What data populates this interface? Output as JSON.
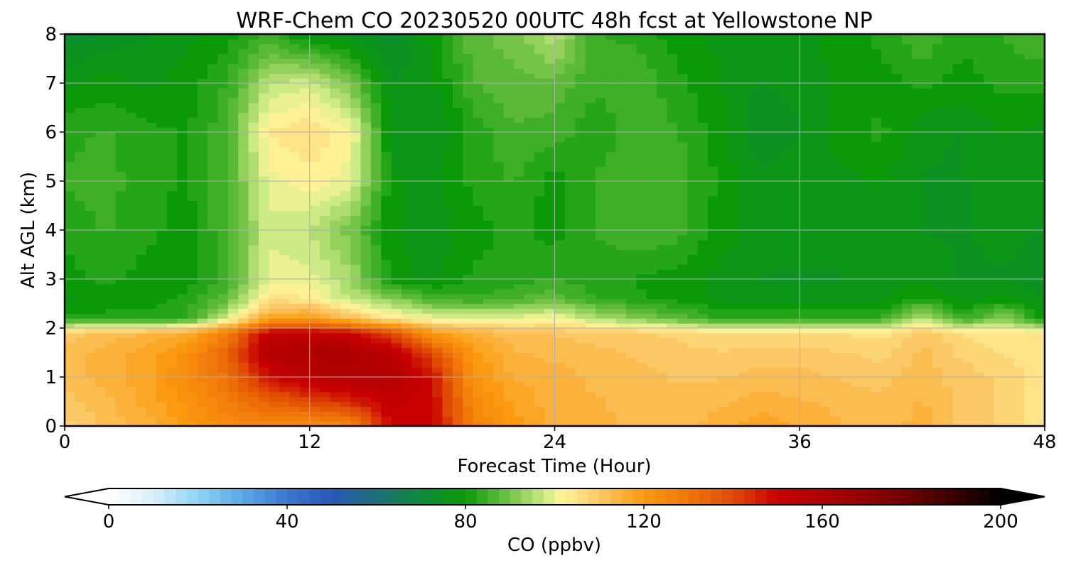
{
  "chart_data": {
    "type": "heatmap",
    "title": "WRF-Chem CO  20230520 00UTC 48h fcst at Yellowstone NP",
    "xlabel": "Forecast Time (Hour)",
    "ylabel": "Alt AGL (km)",
    "xlim": [
      0,
      48
    ],
    "ylim": [
      0,
      8
    ],
    "xticks": [
      0,
      12,
      24,
      36,
      48
    ],
    "yticks": [
      0,
      1,
      2,
      3,
      4,
      5,
      6,
      7,
      8
    ],
    "grid": true,
    "x_hours": [
      0,
      2,
      4,
      6,
      8,
      10,
      12,
      14,
      16,
      18,
      20,
      22,
      24,
      26,
      28,
      30,
      32,
      34,
      36,
      38,
      40,
      42,
      44,
      46,
      48
    ],
    "altitudes_km": [
      0,
      0.5,
      1,
      1.5,
      1.9,
      2.2,
      2.6,
      3,
      4,
      5,
      6,
      7,
      8
    ],
    "values_ppbv": [
      [
        108,
        112,
        115,
        120,
        125,
        125,
        122,
        125,
        150,
        150,
        128,
        120,
        115,
        115,
        112,
        112,
        115,
        118,
        116,
        114,
        112,
        115,
        110,
        108,
        105
      ],
      [
        110,
        113,
        117,
        122,
        128,
        135,
        140,
        145,
        152,
        150,
        125,
        118,
        115,
        114,
        113,
        112,
        113,
        115,
        114,
        113,
        112,
        114,
        110,
        108,
        105
      ],
      [
        112,
        115,
        118,
        124,
        132,
        148,
        155,
        158,
        158,
        148,
        122,
        116,
        115,
        113,
        112,
        111,
        111,
        112,
        112,
        111,
        110,
        113,
        110,
        108,
        105
      ],
      [
        112,
        115,
        117,
        122,
        135,
        158,
        160,
        160,
        155,
        140,
        120,
        114,
        113,
        112,
        111,
        110,
        109,
        110,
        110,
        109,
        108,
        112,
        108,
        106,
        104
      ],
      [
        110,
        112,
        114,
        116,
        128,
        152,
        152,
        150,
        140,
        120,
        115,
        112,
        111,
        110,
        109,
        108,
        106,
        106,
        106,
        106,
        105,
        110,
        106,
        105,
        104
      ],
      [
        82,
        82,
        82,
        84,
        98,
        118,
        120,
        112,
        104,
        100,
        100,
        100,
        102,
        95,
        92,
        88,
        84,
        84,
        84,
        84,
        84,
        96,
        84,
        92,
        80
      ],
      [
        78,
        80,
        80,
        82,
        88,
        105,
        104,
        96,
        92,
        86,
        84,
        86,
        88,
        84,
        82,
        80,
        78,
        77,
        77,
        77,
        78,
        82,
        78,
        80,
        76
      ],
      [
        80,
        82,
        80,
        80,
        85,
        100,
        100,
        94,
        80,
        78,
        82,
        82,
        84,
        82,
        81,
        80,
        78,
        76,
        76,
        76,
        78,
        78,
        76,
        76,
        75
      ],
      [
        82,
        84,
        82,
        80,
        86,
        98,
        96,
        90,
        79,
        77,
        80,
        82,
        80,
        84,
        86,
        85,
        80,
        78,
        77,
        77,
        78,
        76,
        76,
        77,
        76
      ],
      [
        84,
        85,
        82,
        81,
        86,
        100,
        103,
        100,
        79,
        78,
        82,
        84,
        80,
        84,
        86,
        85,
        81,
        77,
        78,
        78,
        79,
        76,
        76,
        78,
        77
      ],
      [
        83,
        84,
        82,
        81,
        86,
        104,
        106,
        102,
        78,
        76,
        82,
        86,
        85,
        82,
        85,
        84,
        80,
        74,
        76,
        80,
        82,
        77,
        76,
        79,
        78
      ],
      [
        78,
        80,
        78,
        80,
        84,
        96,
        98,
        90,
        76,
        78,
        86,
        88,
        88,
        84,
        86,
        82,
        79,
        76,
        77,
        79,
        80,
        82,
        80,
        82,
        82
      ],
      [
        72,
        74,
        76,
        78,
        80,
        84,
        78,
        76,
        72,
        80,
        88,
        90,
        96,
        84,
        83,
        80,
        78,
        78,
        78,
        80,
        82,
        86,
        82,
        84,
        86
      ]
    ],
    "colorbar": {
      "label": "CO  (ppbv)",
      "ticks": [
        0,
        40,
        80,
        120,
        160,
        200
      ],
      "vmin": 0,
      "vmax": 200,
      "extend": "both",
      "colors": [
        [
          0,
          "#ffffff"
        ],
        [
          10,
          "#d8effa"
        ],
        [
          20,
          "#8fd4f5"
        ],
        [
          30,
          "#5aa8e6"
        ],
        [
          40,
          "#3b78cf"
        ],
        [
          50,
          "#2a57b8"
        ],
        [
          60,
          "#1d6f7a"
        ],
        [
          70,
          "#0e8a3a"
        ],
        [
          80,
          "#0a9a08"
        ],
        [
          90,
          "#74c447"
        ],
        [
          98,
          "#d2ec8a"
        ],
        [
          102,
          "#fff599"
        ],
        [
          110,
          "#fbc865"
        ],
        [
          120,
          "#fb9a0f"
        ],
        [
          130,
          "#f07708"
        ],
        [
          140,
          "#e04a03"
        ],
        [
          150,
          "#c80000"
        ],
        [
          165,
          "#a20000"
        ],
        [
          180,
          "#6a0000"
        ],
        [
          200,
          "#000000"
        ]
      ]
    }
  }
}
